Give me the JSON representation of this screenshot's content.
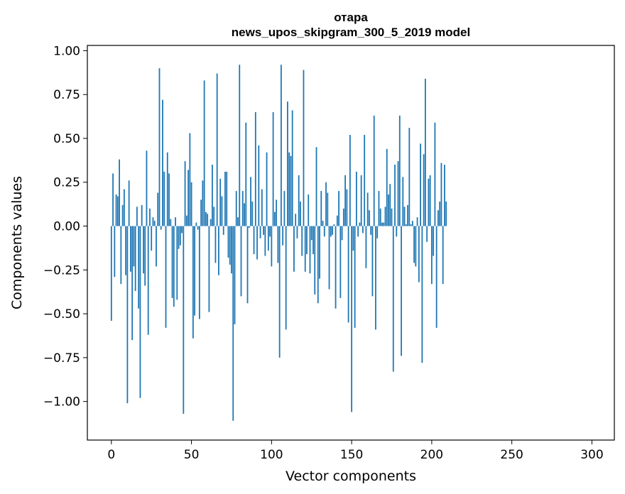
{
  "chart_data": {
    "type": "bar",
    "title_lines": [
      "отара",
      "news_upos_skipgram_300_5_2019 model"
    ],
    "xlabel": "Vector components",
    "ylabel": "Components values",
    "xlim": [
      -15,
      314
    ],
    "ylim": [
      -1.22,
      1.03
    ],
    "x_ticks": [
      0,
      50,
      100,
      150,
      200,
      250,
      300
    ],
    "x_tick_labels": [
      "0",
      "50",
      "100",
      "150",
      "200",
      "250",
      "300"
    ],
    "y_ticks": [
      1.0,
      0.75,
      0.5,
      0.25,
      0.0,
      -0.25,
      -0.5,
      -0.75,
      -1.0
    ],
    "y_tick_labels": [
      "1.00",
      "0.75",
      "0.50",
      "0.25",
      "0.00",
      "−0.25",
      "−0.50",
      "−0.75",
      "−1.00"
    ],
    "bar_color": "#1f77b4",
    "values": [
      -0.54,
      0.3,
      -0.29,
      0.18,
      0.17,
      0.38,
      -0.33,
      0.12,
      0.21,
      -0.28,
      -1.01,
      0.26,
      -0.26,
      -0.65,
      -0.23,
      -0.37,
      0.11,
      -0.47,
      -0.98,
      0.12,
      -0.27,
      -0.34,
      0.43,
      -0.62,
      0.1,
      -0.14,
      0.05,
      0.03,
      -0.23,
      0.19,
      0.9,
      -0.02,
      0.72,
      0.31,
      -0.58,
      0.42,
      0.3,
      0.04,
      -0.41,
      -0.46,
      0.05,
      -0.42,
      -0.13,
      -0.11,
      -0.04,
      -1.07,
      0.37,
      0.06,
      0.32,
      0.53,
      0.25,
      -0.64,
      -0.51,
      0.02,
      -0.02,
      -0.53,
      0.15,
      0.26,
      0.83,
      0.08,
      0.07,
      -0.49,
      0.04,
      0.35,
      0.11,
      -0.21,
      0.87,
      -0.28,
      0.27,
      0.17,
      -0.05,
      0.31,
      0.31,
      -0.18,
      -0.22,
      -0.27,
      -1.11,
      -0.56,
      0.2,
      0.05,
      0.92,
      -0.4,
      0.2,
      0.13,
      0.59,
      -0.44,
      -0.01,
      0.28,
      0.14,
      -0.16,
      0.65,
      -0.19,
      0.46,
      -0.07,
      0.21,
      -0.05,
      -0.17,
      0.42,
      -0.14,
      -0.06,
      -0.23,
      0.65,
      0.08,
      0.15,
      -0.21,
      -0.75,
      0.92,
      -0.11,
      0.2,
      -0.59,
      0.71,
      0.42,
      0.4,
      0.66,
      -0.26,
      0.07,
      -0.07,
      0.29,
      0.14,
      -0.17,
      0.89,
      -0.26,
      -0.16,
      0.18,
      -0.27,
      -0.08,
      -0.16,
      -0.39,
      0.45,
      -0.44,
      -0.3,
      0.2,
      0.03,
      -0.06,
      0.25,
      0.19,
      -0.36,
      -0.06,
      -0.05,
      0.01,
      -0.47,
      0.06,
      0.2,
      -0.41,
      -0.08,
      0.1,
      0.29,
      0.21,
      -0.55,
      0.52,
      -1.06,
      -0.14,
      -0.58,
      0.31,
      -0.06,
      0.02,
      0.29,
      -0.04,
      0.52,
      -0.24,
      0.19,
      0.09,
      -0.05,
      -0.4,
      0.63,
      -0.59,
      -0.07,
      0.2,
      0.1,
      0.02,
      0.02,
      0.11,
      0.44,
      0.18,
      0.24,
      0.1,
      -0.83,
      0.35,
      -0.06,
      0.37,
      0.63,
      -0.74,
      0.28,
      0.11,
      0.01,
      0.12,
      0.56,
      0.01,
      0.03,
      -0.21,
      -0.23,
      0.05,
      -0.32,
      0.47,
      -0.78,
      0.41,
      0.84,
      -0.09,
      0.27,
      0.29,
      -0.33,
      -0.17,
      0.59,
      -0.58,
      0.09,
      0.14,
      0.36,
      -0.33,
      0.35,
      0.14
    ]
  }
}
